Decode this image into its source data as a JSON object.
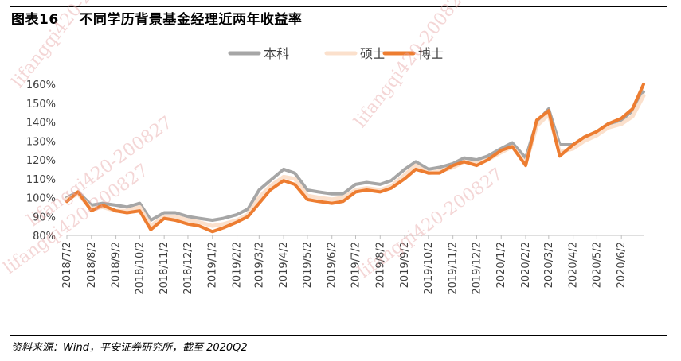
{
  "title": "图表16    不同学历背景基金经理近两年收益率",
  "source": "资料来源：Wind，平安证券研究所，截至 2020Q2",
  "watermarks": [
    "lifangqi420-200827",
    "lifangqi420-200827",
    "lifangqi420-200827",
    "lifangqi420-200827",
    "lifangqi420-200827"
  ],
  "colors": {
    "series_bachelor": "#a6a6a6",
    "series_master": "#fbe0cc",
    "series_doctor": "#ed7d31",
    "axis": "#bfbfbf"
  },
  "chart_data": {
    "type": "line",
    "title": "",
    "xlabel": "",
    "ylabel": "",
    "legend_position": "top-center",
    "ylim": [
      80,
      160
    ],
    "yticks": [
      "80%",
      "90%",
      "100%",
      "110%",
      "120%",
      "130%",
      "140%",
      "150%",
      "160%"
    ],
    "x_tick_labels": [
      "2018/7/2",
      "2018/8/2",
      "2018/9/2",
      "2018/10/2",
      "2018/11/2",
      "2018/12/2",
      "2019/1/2",
      "2019/2/2",
      "2019/3/2",
      "2019/4/2",
      "2019/5/2",
      "2019/6/2",
      "2019/7/2",
      "2019/8/2",
      "2019/9/2",
      "2019/10/2",
      "2019/11/2",
      "2019/12/2",
      "2020/1/2",
      "2020/2/2",
      "2020/3/2",
      "2020/4/2",
      "2020/5/2",
      "2020/6/2"
    ],
    "x": [
      "2018/7/2",
      "2018/7/16",
      "2018/8/2",
      "2018/8/16",
      "2018/9/2",
      "2018/9/16",
      "2018/10/2",
      "2018/10/16",
      "2018/11/2",
      "2018/11/16",
      "2018/12/2",
      "2018/12/16",
      "2019/1/2",
      "2019/1/16",
      "2019/2/2",
      "2019/2/16",
      "2019/3/2",
      "2019/3/16",
      "2019/4/2",
      "2019/4/16",
      "2019/5/2",
      "2019/5/16",
      "2019/6/2",
      "2019/6/16",
      "2019/7/2",
      "2019/7/16",
      "2019/8/2",
      "2019/8/16",
      "2019/9/2",
      "2019/9/16",
      "2019/10/2",
      "2019/10/16",
      "2019/11/2",
      "2019/11/16",
      "2019/12/2",
      "2019/12/16",
      "2020/1/2",
      "2020/1/16",
      "2020/2/2",
      "2020/2/16",
      "2020/3/2",
      "2020/3/16",
      "2020/4/2",
      "2020/4/16",
      "2020/5/2",
      "2020/5/16",
      "2020/6/2",
      "2020/6/16",
      "2020/6/30"
    ],
    "series": [
      {
        "name": "本科",
        "values": [
          100,
          103,
          96,
          97,
          96,
          95,
          97,
          88,
          92,
          92,
          90,
          89,
          88,
          89,
          91,
          94,
          104,
          109,
          115,
          113,
          104,
          103,
          102,
          102,
          107,
          108,
          107,
          109,
          115,
          119,
          115,
          116,
          118,
          121,
          120,
          122,
          126,
          129,
          121,
          140,
          147,
          128,
          128,
          132,
          135,
          139,
          141,
          146,
          156
        ]
      },
      {
        "name": "硕士",
        "values": [
          99,
          102,
          94,
          95,
          93,
          93,
          95,
          85,
          90,
          90,
          88,
          87,
          85,
          86,
          88,
          91,
          100,
          106,
          111,
          110,
          101,
          100,
          99,
          100,
          104,
          105,
          104,
          106,
          112,
          117,
          113,
          114,
          116,
          119,
          118,
          120,
          124,
          127,
          118,
          138,
          144,
          124,
          126,
          130,
          133,
          137,
          139,
          143,
          154
        ]
      },
      {
        "name": "博士",
        "values": [
          98,
          103,
          93,
          96,
          93,
          92,
          93,
          83,
          89,
          88,
          86,
          85,
          82,
          84,
          87,
          90,
          97,
          104,
          109,
          107,
          99,
          98,
          97,
          98,
          103,
          104,
          103,
          105,
          110,
          115,
          113,
          113,
          117,
          119,
          117,
          120,
          125,
          127,
          117,
          141,
          146,
          122,
          128,
          132,
          135,
          139,
          142,
          147,
          160
        ]
      }
    ]
  }
}
